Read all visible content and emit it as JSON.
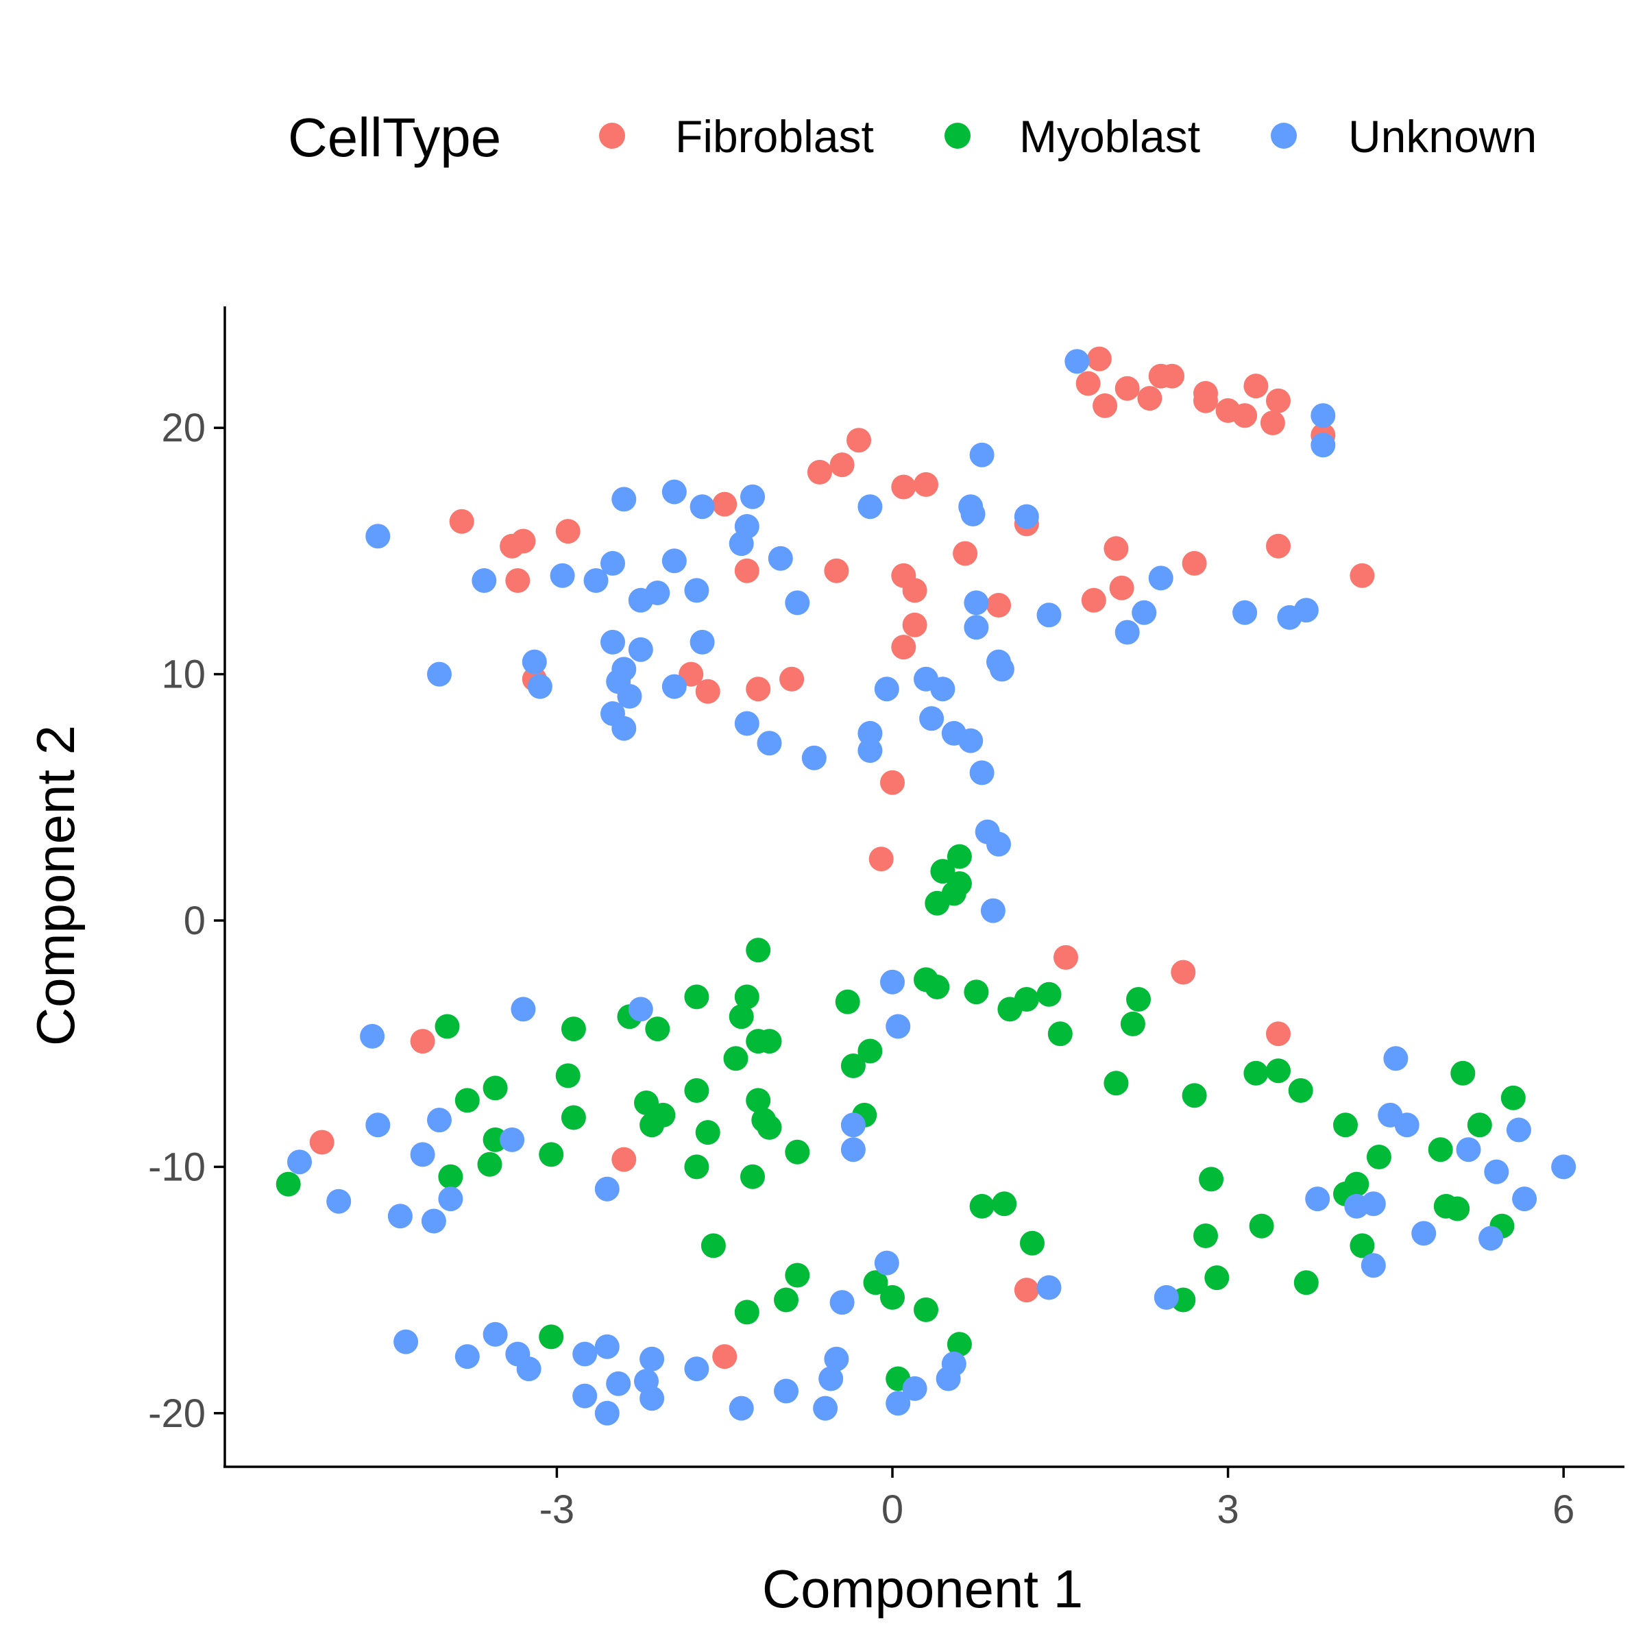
{
  "chart_data": {
    "type": "scatter",
    "xlabel": "Component 1",
    "ylabel": "Component 2",
    "xlim": [
      -5.3,
      6.8
    ],
    "ylim": [
      -22.0,
      25.0
    ],
    "x_ticks": [
      {
        "value": -3,
        "label": "-3"
      },
      {
        "value": 0,
        "label": "0"
      },
      {
        "value": 3,
        "label": "3"
      },
      {
        "value": 6,
        "label": "6"
      }
    ],
    "y_ticks": [
      {
        "value": -20,
        "label": "-20"
      },
      {
        "value": -10,
        "label": "-10"
      },
      {
        "value": 0,
        "label": "0"
      },
      {
        "value": 10,
        "label": "10"
      },
      {
        "value": 20,
        "label": "20"
      }
    ],
    "grid": false,
    "legend": {
      "title": "CellType",
      "position": "top"
    },
    "series": [
      {
        "name": "Fibroblast",
        "color": "#F8766D",
        "points": [
          [
            1.85,
            22.8
          ],
          [
            1.75,
            21.8
          ],
          [
            1.9,
            20.9
          ],
          [
            2.1,
            21.6
          ],
          [
            2.3,
            21.2
          ],
          [
            2.4,
            22.1
          ],
          [
            2.5,
            22.1
          ],
          [
            2.8,
            21.4
          ],
          [
            2.8,
            21.1
          ],
          [
            3.0,
            20.7
          ],
          [
            3.15,
            20.5
          ],
          [
            3.25,
            21.7
          ],
          [
            3.4,
            20.2
          ],
          [
            3.45,
            21.1
          ],
          [
            3.85,
            19.7
          ],
          [
            3.45,
            15.2
          ],
          [
            4.2,
            14.0
          ],
          [
            2.7,
            14.5
          ],
          [
            2.0,
            15.1
          ],
          [
            2.05,
            13.5
          ],
          [
            1.8,
            13.0
          ],
          [
            1.2,
            16.1
          ],
          [
            0.95,
            12.8
          ],
          [
            0.65,
            14.9
          ],
          [
            0.1,
            17.6
          ],
          [
            0.3,
            17.7
          ],
          [
            0.1,
            14.0
          ],
          [
            0.2,
            13.4
          ],
          [
            0.2,
            12.0
          ],
          [
            0.1,
            11.1
          ],
          [
            -0.3,
            19.5
          ],
          [
            -0.45,
            18.5
          ],
          [
            -0.65,
            18.2
          ],
          [
            -0.5,
            14.2
          ],
          [
            -1.5,
            16.9
          ],
          [
            -1.3,
            14.2
          ],
          [
            -1.2,
            9.4
          ],
          [
            -0.9,
            9.8
          ],
          [
            -1.8,
            10.0
          ],
          [
            -1.65,
            9.3
          ],
          [
            -2.9,
            15.8
          ],
          [
            -3.3,
            15.4
          ],
          [
            -3.4,
            15.2
          ],
          [
            -3.35,
            13.8
          ],
          [
            -3.85,
            16.2
          ],
          [
            -3.2,
            9.8
          ],
          [
            0.0,
            5.6
          ],
          [
            -0.1,
            2.5
          ],
          [
            1.55,
            -1.5
          ],
          [
            2.6,
            -2.1
          ],
          [
            3.45,
            -4.6
          ],
          [
            -4.2,
            -4.9
          ],
          [
            -5.1,
            -9.0
          ],
          [
            -2.4,
            -9.7
          ],
          [
            -1.5,
            -17.7
          ],
          [
            1.2,
            -15.0
          ]
        ]
      },
      {
        "name": "Myoblast",
        "color": "#00BA38",
        "points": [
          [
            0.6,
            2.6
          ],
          [
            0.45,
            2.0
          ],
          [
            0.6,
            1.5
          ],
          [
            0.55,
            1.1
          ],
          [
            0.4,
            0.7
          ],
          [
            -1.2,
            -1.2
          ],
          [
            0.3,
            -2.4
          ],
          [
            0.4,
            -2.7
          ],
          [
            0.75,
            -2.9
          ],
          [
            1.05,
            -3.6
          ],
          [
            1.2,
            -3.2
          ],
          [
            1.4,
            -3.0
          ],
          [
            1.5,
            -4.6
          ],
          [
            2.2,
            -3.2
          ],
          [
            2.15,
            -4.2
          ],
          [
            2.0,
            -6.6
          ],
          [
            2.7,
            -7.1
          ],
          [
            3.25,
            -6.2
          ],
          [
            3.45,
            -6.1
          ],
          [
            3.65,
            -6.9
          ],
          [
            -0.4,
            -3.3
          ],
          [
            -0.35,
            -5.9
          ],
          [
            -0.2,
            -5.3
          ],
          [
            -0.25,
            -7.9
          ],
          [
            -1.3,
            -3.1
          ],
          [
            -1.35,
            -3.9
          ],
          [
            -1.2,
            -4.9
          ],
          [
            -1.1,
            -4.9
          ],
          [
            -1.4,
            -5.6
          ],
          [
            -1.75,
            -3.1
          ],
          [
            -2.1,
            -4.4
          ],
          [
            -2.35,
            -3.9
          ],
          [
            -2.85,
            -4.4
          ],
          [
            -2.9,
            -6.3
          ],
          [
            -2.85,
            -8.0
          ],
          [
            -3.55,
            -6.8
          ],
          [
            -3.8,
            -7.3
          ],
          [
            -3.55,
            -8.9
          ],
          [
            -3.6,
            -9.9
          ],
          [
            -3.95,
            -10.4
          ],
          [
            -3.98,
            -4.3
          ],
          [
            -5.4,
            -10.7
          ],
          [
            -3.05,
            -9.5
          ],
          [
            -2.2,
            -7.4
          ],
          [
            -2.15,
            -8.3
          ],
          [
            -2.05,
            -7.9
          ],
          [
            -1.75,
            -6.9
          ],
          [
            -1.65,
            -8.6
          ],
          [
            -1.75,
            -10.0
          ],
          [
            -1.6,
            -13.2
          ],
          [
            -1.2,
            -7.3
          ],
          [
            -1.15,
            -8.1
          ],
          [
            -1.1,
            -8.4
          ],
          [
            -1.25,
            -10.4
          ],
          [
            -0.85,
            -9.4
          ],
          [
            -3.05,
            -16.9
          ],
          [
            -1.3,
            -15.9
          ],
          [
            -0.95,
            -15.4
          ],
          [
            -0.85,
            -14.4
          ],
          [
            -0.15,
            -14.7
          ],
          [
            0.0,
            -15.3
          ],
          [
            0.3,
            -15.8
          ],
          [
            0.6,
            -17.2
          ],
          [
            0.05,
            -18.6
          ],
          [
            0.8,
            -11.6
          ],
          [
            1.0,
            -11.5
          ],
          [
            1.25,
            -13.1
          ],
          [
            2.85,
            -10.5
          ],
          [
            2.8,
            -12.8
          ],
          [
            2.9,
            -14.5
          ],
          [
            3.3,
            -12.4
          ],
          [
            3.7,
            -14.7
          ],
          [
            2.6,
            -15.4
          ],
          [
            4.05,
            -8.3
          ],
          [
            4.35,
            -9.6
          ],
          [
            4.15,
            -10.7
          ],
          [
            4.05,
            -11.1
          ],
          [
            4.2,
            -13.2
          ],
          [
            4.9,
            -9.3
          ],
          [
            5.1,
            -6.2
          ],
          [
            5.25,
            -8.3
          ],
          [
            5.55,
            -7.2
          ],
          [
            4.95,
            -11.6
          ],
          [
            5.05,
            -11.7
          ],
          [
            5.45,
            -12.4
          ]
        ]
      },
      {
        "name": "Unknown",
        "color": "#619CFF",
        "points": [
          [
            1.65,
            22.7
          ],
          [
            3.85,
            20.5
          ],
          [
            3.85,
            19.3
          ],
          [
            0.8,
            18.9
          ],
          [
            -0.2,
            16.8
          ],
          [
            0.7,
            16.8
          ],
          [
            0.72,
            16.5
          ],
          [
            1.2,
            16.4
          ],
          [
            -2.4,
            17.1
          ],
          [
            -1.95,
            17.4
          ],
          [
            -1.7,
            16.8
          ],
          [
            -1.3,
            16.0
          ],
          [
            -1.35,
            15.3
          ],
          [
            -1.25,
            17.2
          ],
          [
            -1.0,
            14.7
          ],
          [
            -0.85,
            12.9
          ],
          [
            -4.6,
            15.6
          ],
          [
            -3.65,
            13.8
          ],
          [
            -2.95,
            14.0
          ],
          [
            -2.65,
            13.8
          ],
          [
            -2.5,
            14.5
          ],
          [
            -2.25,
            13.0
          ],
          [
            -2.1,
            13.3
          ],
          [
            -1.95,
            14.6
          ],
          [
            -1.75,
            13.4
          ],
          [
            -1.7,
            11.3
          ],
          [
            -2.5,
            11.3
          ],
          [
            -2.25,
            11.0
          ],
          [
            -2.4,
            10.2
          ],
          [
            -2.45,
            9.7
          ],
          [
            -2.35,
            9.1
          ],
          [
            -2.5,
            8.4
          ],
          [
            -2.4,
            7.8
          ],
          [
            -1.95,
            9.5
          ],
          [
            -4.05,
            10.0
          ],
          [
            -3.2,
            10.5
          ],
          [
            -3.15,
            9.5
          ],
          [
            -1.3,
            8.0
          ],
          [
            -1.1,
            7.2
          ],
          [
            -0.7,
            6.6
          ],
          [
            -0.2,
            7.6
          ],
          [
            -0.2,
            6.9
          ],
          [
            -0.05,
            9.4
          ],
          [
            0.3,
            9.8
          ],
          [
            0.45,
            9.4
          ],
          [
            0.35,
            8.2
          ],
          [
            0.55,
            7.6
          ],
          [
            0.7,
            7.3
          ],
          [
            0.8,
            6.0
          ],
          [
            0.75,
            12.9
          ],
          [
            0.75,
            11.9
          ],
          [
            0.95,
            10.5
          ],
          [
            0.98,
            10.2
          ],
          [
            1.4,
            12.4
          ],
          [
            2.1,
            11.7
          ],
          [
            2.25,
            12.5
          ],
          [
            2.4,
            13.9
          ],
          [
            3.15,
            12.5
          ],
          [
            3.55,
            12.3
          ],
          [
            3.7,
            12.6
          ],
          [
            0.85,
            3.6
          ],
          [
            0.95,
            3.1
          ],
          [
            0.9,
            0.4
          ],
          [
            0.0,
            -2.5
          ],
          [
            0.05,
            -4.3
          ],
          [
            -2.25,
            -3.6
          ],
          [
            -3.3,
            -3.6
          ],
          [
            -4.65,
            -4.7
          ],
          [
            -4.6,
            -8.3
          ],
          [
            -4.05,
            -8.1
          ],
          [
            -3.4,
            -8.9
          ],
          [
            -4.2,
            -9.5
          ],
          [
            -5.3,
            -9.8
          ],
          [
            -4.95,
            -11.4
          ],
          [
            -4.4,
            -12.0
          ],
          [
            -4.1,
            -12.2
          ],
          [
            -3.95,
            -11.3
          ],
          [
            -2.55,
            -10.9
          ],
          [
            -0.35,
            -8.3
          ],
          [
            -0.35,
            -9.3
          ],
          [
            -4.35,
            -17.1
          ],
          [
            -3.8,
            -17.7
          ],
          [
            -3.55,
            -16.8
          ],
          [
            -3.35,
            -17.6
          ],
          [
            -3.25,
            -18.2
          ],
          [
            -2.75,
            -17.6
          ],
          [
            -2.55,
            -17.3
          ],
          [
            -2.75,
            -19.3
          ],
          [
            -2.55,
            -20.0
          ],
          [
            -2.45,
            -18.8
          ],
          [
            -2.15,
            -17.8
          ],
          [
            -2.2,
            -18.7
          ],
          [
            -2.15,
            -19.4
          ],
          [
            -1.75,
            -18.2
          ],
          [
            -1.35,
            -19.8
          ],
          [
            -0.95,
            -19.1
          ],
          [
            -0.6,
            -19.8
          ],
          [
            -0.5,
            -17.8
          ],
          [
            -0.55,
            -18.6
          ],
          [
            -0.45,
            -15.5
          ],
          [
            -0.05,
            -13.9
          ],
          [
            0.05,
            -19.6
          ],
          [
            0.2,
            -19.0
          ],
          [
            0.5,
            -18.6
          ],
          [
            0.55,
            -18.0
          ],
          [
            1.4,
            -14.9
          ],
          [
            2.45,
            -15.3
          ],
          [
            3.8,
            -11.3
          ],
          [
            4.15,
            -11.6
          ],
          [
            4.3,
            -11.5
          ],
          [
            4.3,
            -14.0
          ],
          [
            4.5,
            -5.6
          ],
          [
            4.45,
            -7.9
          ],
          [
            4.6,
            -8.3
          ],
          [
            4.75,
            -12.7
          ],
          [
            5.15,
            -9.3
          ],
          [
            5.6,
            -8.5
          ],
          [
            5.4,
            -10.2
          ],
          [
            5.35,
            -12.9
          ],
          [
            5.65,
            -11.3
          ],
          [
            6.0,
            -10.0
          ]
        ]
      }
    ]
  }
}
